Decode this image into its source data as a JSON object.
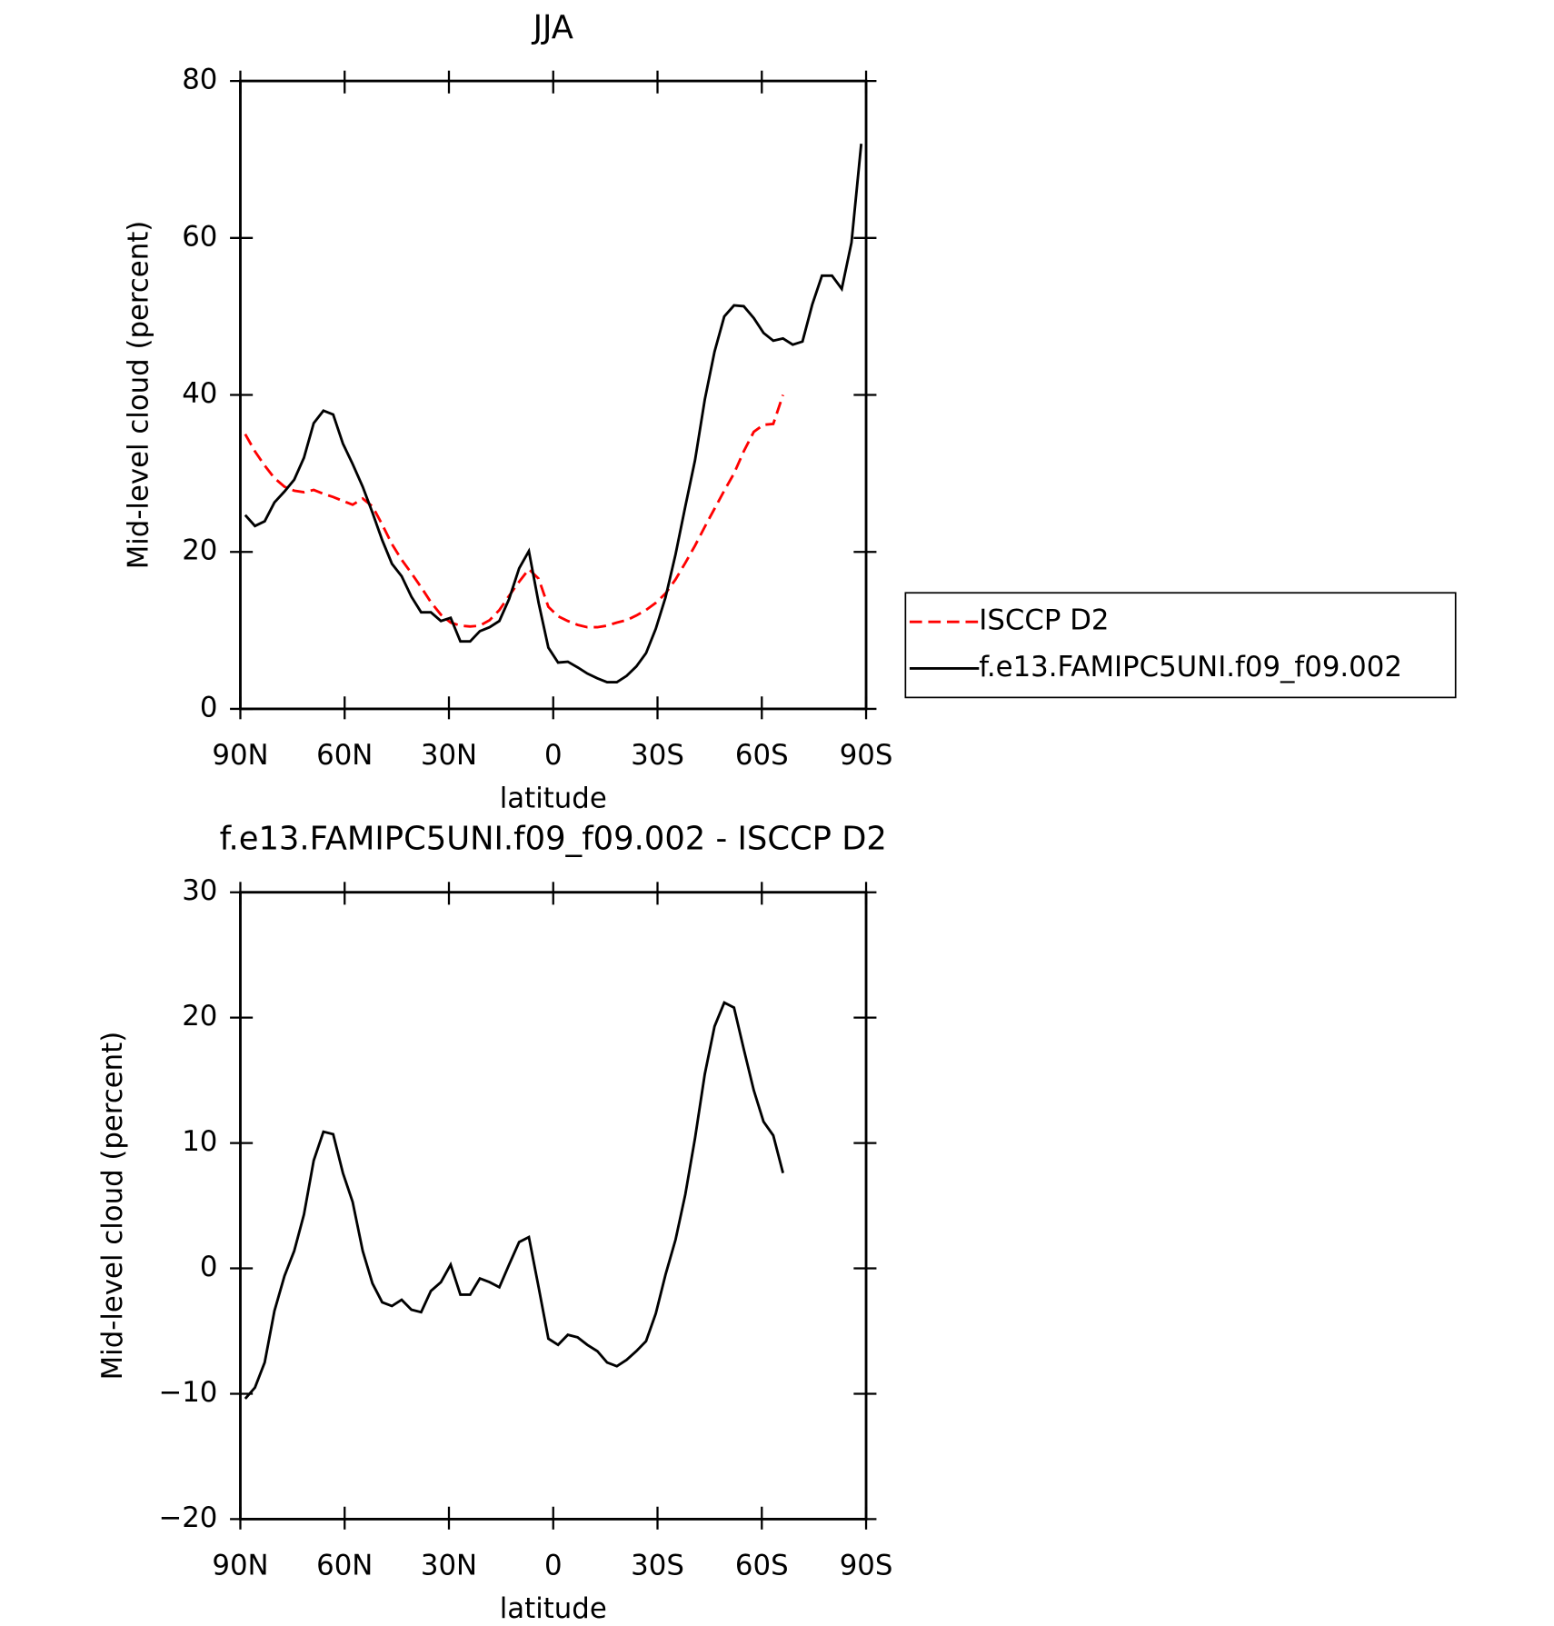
{
  "chart_data": [
    {
      "type": "line",
      "title": "JJA",
      "xlabel": "latitude",
      "ylabel": "Mid-level cloud (percent)",
      "x": [
        88.6,
        85.8,
        83.0,
        80.2,
        77.3,
        74.5,
        71.7,
        68.9,
        66.1,
        63.3,
        60.5,
        57.7,
        54.8,
        52.0,
        49.2,
        46.4,
        43.6,
        40.8,
        38.0,
        35.2,
        32.3,
        29.5,
        26.7,
        23.9,
        21.1,
        18.3,
        15.5,
        12.7,
        9.8,
        7.0,
        4.2,
        1.4,
        -1.4,
        -4.2,
        -7.0,
        -9.8,
        -12.7,
        -15.5,
        -18.3,
        -21.1,
        -23.9,
        -26.7,
        -29.5,
        -32.3,
        -35.2,
        -38.0,
        -40.8,
        -43.6,
        -46.4,
        -49.2,
        -52.0,
        -54.8,
        -57.7,
        -60.5,
        -63.3,
        -66.1,
        -68.9,
        -71.7,
        -74.5,
        -77.3,
        -80.2,
        -83.0,
        -85.8,
        -88.6
      ],
      "series": [
        {
          "name": "ISCCP D2",
          "color": "#ff0000",
          "style": "dashed",
          "values": [
            35,
            32.8,
            31,
            29.4,
            28.3,
            27.8,
            27.6,
            27.9,
            27.4,
            27,
            26.5,
            26,
            26.8,
            25.8,
            23.5,
            21,
            19,
            17.3,
            15.5,
            13.6,
            12,
            11,
            10.6,
            10.5,
            10.6,
            11.3,
            12.6,
            14.4,
            16.2,
            17.8,
            16.6,
            13,
            11.8,
            11.2,
            10.7,
            10.4,
            10.4,
            10.6,
            11,
            11.3,
            11.9,
            12.6,
            13.5,
            14.7,
            16.5,
            18.6,
            20.8,
            23.2,
            25.5,
            27.8,
            30,
            32.8,
            35.3,
            36.2,
            36.3,
            40,
            null,
            null,
            null,
            null,
            null,
            null,
            null,
            null
          ]
        },
        {
          "name": "f.e13.FAMIPC5UNI.f09_f09.002",
          "color": "#000000",
          "style": "solid",
          "values": [
            24.7,
            23.3,
            23.9,
            26.3,
            27.7,
            29.2,
            32,
            36.4,
            38,
            37.5,
            33.8,
            31.2,
            28.3,
            25,
            21.5,
            18.5,
            16.9,
            14.3,
            12.3,
            12.3,
            11.2,
            11.6,
            8.6,
            8.6,
            9.9,
            10.4,
            11.2,
            14,
            17.9,
            20.1,
            13.5,
            7.8,
            5.9,
            6,
            5.3,
            4.5,
            3.9,
            3.4,
            3.4,
            4.2,
            5.4,
            7.1,
            10.2,
            14.2,
            19.7,
            25.8,
            31.7,
            39.4,
            45.5,
            50,
            51.4,
            51.3,
            49.8,
            47.9,
            46.9,
            47.2,
            46.4,
            46.8,
            51.5,
            55.2,
            55.2,
            53.5,
            59.4,
            72
          ]
        }
      ],
      "xlim": [
        90,
        -90
      ],
      "xticks": [
        {
          "value": 90,
          "label": "90N"
        },
        {
          "value": 60,
          "label": "60N"
        },
        {
          "value": 30,
          "label": "30N"
        },
        0,
        {
          "value": -30,
          "label": "30S"
        },
        {
          "value": -60,
          "label": "60S"
        },
        {
          "value": -90,
          "label": "90S"
        }
      ],
      "ylim": [
        0,
        80
      ],
      "yticks": [
        0,
        20,
        40,
        60,
        80
      ],
      "legend": "right"
    },
    {
      "type": "line",
      "title": "f.e13.FAMIPC5UNI.f09_f09.002 - ISCCP D2",
      "xlabel": "latitude",
      "ylabel": "Mid-level cloud (percent)",
      "x": [
        88.6,
        85.8,
        83.0,
        80.2,
        77.3,
        74.5,
        71.7,
        68.9,
        66.1,
        63.3,
        60.5,
        57.7,
        54.8,
        52.0,
        49.2,
        46.4,
        43.6,
        40.8,
        38.0,
        35.2,
        32.3,
        29.5,
        26.7,
        23.9,
        21.1,
        18.3,
        15.5,
        12.7,
        9.8,
        7.0,
        4.2,
        1.4,
        -1.4,
        -4.2,
        -7.0,
        -9.8,
        -12.7,
        -15.5,
        -18.3,
        -21.1,
        -23.9,
        -26.7,
        -29.5,
        -32.3,
        -35.2,
        -38.0,
        -40.8,
        -43.6,
        -46.4,
        -49.2,
        -52.0,
        -54.8,
        -57.7,
        -60.5,
        -63.3,
        -66.1,
        -68.9,
        -71.7,
        -74.5,
        -77.3,
        -80.2,
        -83.0,
        -85.8,
        -88.6
      ],
      "series": [
        {
          "color": "#000000",
          "style": "solid",
          "values": [
            -10.4,
            -9.5,
            -7.5,
            -3.4,
            -0.6,
            1.4,
            4.3,
            8.6,
            10.9,
            10.7,
            7.6,
            5.3,
            1.4,
            -1.2,
            -2.7,
            -3,
            -2.5,
            -3.3,
            -3.5,
            -1.8,
            -1.1,
            0.3,
            -2.1,
            -2.1,
            -0.8,
            -1.1,
            -1.5,
            0.3,
            2.1,
            2.5,
            -1.5,
            -5.6,
            -6.1,
            -5.3,
            -5.5,
            -6.1,
            -6.6,
            -7.5,
            -7.8,
            -7.3,
            -6.6,
            -5.8,
            -3.6,
            -0.5,
            2.3,
            5.9,
            10.4,
            15.5,
            19.3,
            21.2,
            20.8,
            17.5,
            14.2,
            11.7,
            10.6,
            7.6,
            null,
            null,
            null,
            null,
            null,
            null,
            null,
            null
          ]
        }
      ],
      "xlim": [
        90,
        -90
      ],
      "xticks": [
        {
          "value": 90,
          "label": "90N"
        },
        {
          "value": 60,
          "label": "60N"
        },
        {
          "value": 30,
          "label": "30N"
        },
        0,
        {
          "value": -30,
          "label": "30S"
        },
        {
          "value": -60,
          "label": "60S"
        },
        {
          "value": -90,
          "label": "90S"
        }
      ],
      "ylim": [
        -20,
        30
      ],
      "yticks": [
        {
          "value": -20,
          "label": "−20"
        },
        {
          "value": -10,
          "label": "−10"
        },
        0,
        10,
        20,
        30
      ]
    }
  ]
}
